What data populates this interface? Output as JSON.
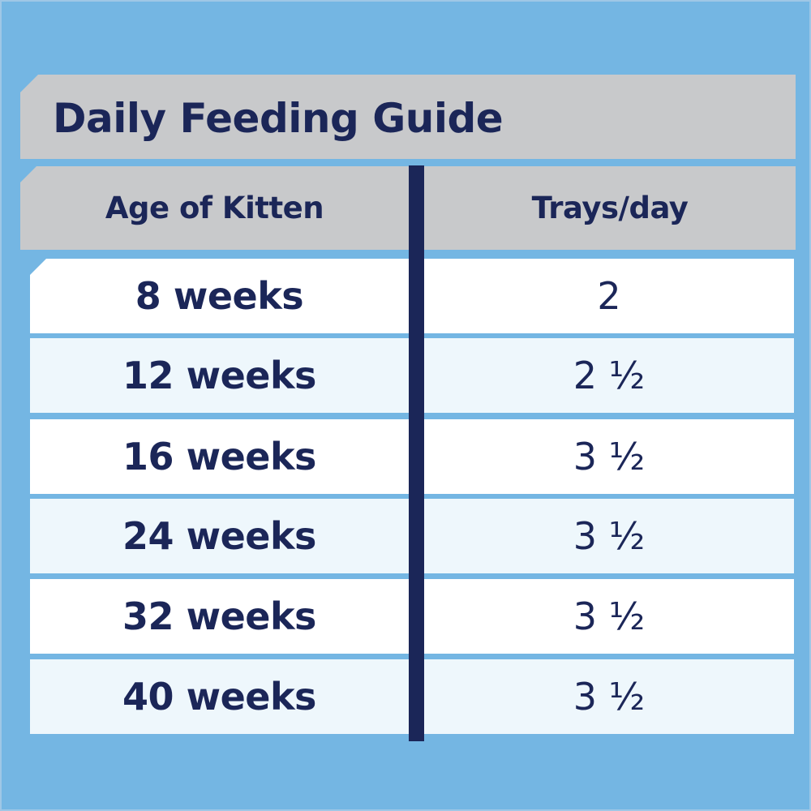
{
  "colors": {
    "background": "#74b6e3",
    "header_gray": "#c8c9cb",
    "navy": "#1b2658",
    "row_white": "#ffffff",
    "row_alt": "#eef7fc"
  },
  "title": "Daily Feeding Guide",
  "table": {
    "headers": [
      "Age of Kitten",
      "Trays/day"
    ],
    "rows": [
      {
        "age": "8 weeks",
        "trays": "2"
      },
      {
        "age": "12 weeks",
        "trays": "2 ½"
      },
      {
        "age": "16 weeks",
        "trays": "3 ½"
      },
      {
        "age": "24 weeks",
        "trays": "3 ½"
      },
      {
        "age": "32 weeks",
        "trays": "3 ½"
      },
      {
        "age": "40 weeks",
        "trays": "3 ½"
      }
    ]
  }
}
